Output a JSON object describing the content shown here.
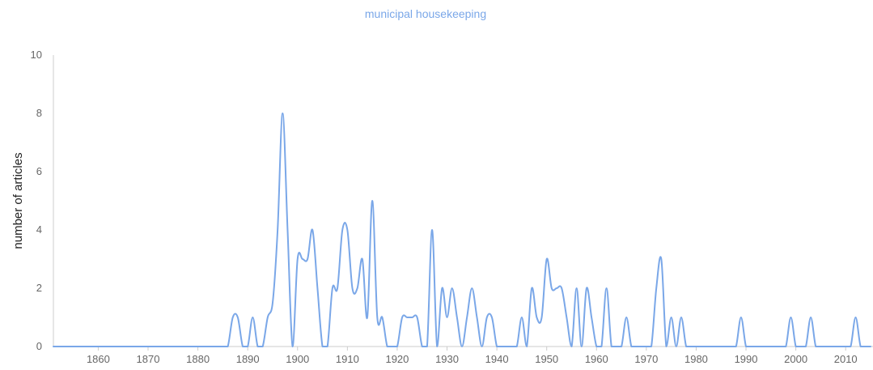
{
  "chart_data": {
    "type": "line",
    "title": "municipal housekeeping",
    "xlabel": "",
    "ylabel": "number of articles",
    "xlim": [
      1851,
      2015
    ],
    "ylim": [
      0,
      10
    ],
    "yticks": [
      0,
      2,
      4,
      6,
      8,
      10
    ],
    "xticks": [
      1860,
      1870,
      1880,
      1890,
      1900,
      1910,
      1920,
      1930,
      1940,
      1950,
      1960,
      1970,
      1980,
      1990,
      2000,
      2010
    ],
    "grid": false,
    "legend": "none",
    "series": [
      {
        "color": "#7aa7e8",
        "x": [
          1851,
          1852,
          1853,
          1854,
          1855,
          1856,
          1857,
          1858,
          1859,
          1860,
          1861,
          1862,
          1863,
          1864,
          1865,
          1866,
          1867,
          1868,
          1869,
          1870,
          1871,
          1872,
          1873,
          1874,
          1875,
          1876,
          1877,
          1878,
          1879,
          1880,
          1881,
          1882,
          1883,
          1884,
          1885,
          1886,
          1887,
          1888,
          1889,
          1890,
          1891,
          1892,
          1893,
          1894,
          1895,
          1896,
          1897,
          1898,
          1899,
          1900,
          1901,
          1902,
          1903,
          1904,
          1905,
          1906,
          1907,
          1908,
          1909,
          1910,
          1911,
          1912,
          1913,
          1914,
          1915,
          1916,
          1917,
          1918,
          1919,
          1920,
          1921,
          1922,
          1923,
          1924,
          1925,
          1926,
          1927,
          1928,
          1929,
          1930,
          1931,
          1932,
          1933,
          1934,
          1935,
          1936,
          1937,
          1938,
          1939,
          1940,
          1941,
          1942,
          1943,
          1944,
          1945,
          1946,
          1947,
          1948,
          1949,
          1950,
          1951,
          1952,
          1953,
          1954,
          1955,
          1956,
          1957,
          1958,
          1959,
          1960,
          1961,
          1962,
          1963,
          1964,
          1965,
          1966,
          1967,
          1968,
          1969,
          1970,
          1971,
          1972,
          1973,
          1974,
          1975,
          1976,
          1977,
          1978,
          1979,
          1980,
          1981,
          1982,
          1983,
          1984,
          1985,
          1986,
          1987,
          1988,
          1989,
          1990,
          1991,
          1992,
          1993,
          1994,
          1995,
          1996,
          1997,
          1998,
          1999,
          2000,
          2001,
          2002,
          2003,
          2004,
          2005,
          2006,
          2007,
          2008,
          2009,
          2010,
          2011,
          2012,
          2013,
          2014,
          2015
        ],
        "y": [
          0,
          0,
          0,
          0,
          0,
          0,
          0,
          0,
          0,
          0,
          0,
          0,
          0,
          0,
          0,
          0,
          0,
          0,
          0,
          0,
          0,
          0,
          0,
          0,
          0,
          0,
          0,
          0,
          0,
          0,
          0,
          0,
          0,
          0,
          0,
          0,
          1,
          1,
          0,
          0,
          1,
          0,
          0,
          1,
          1.5,
          4,
          8,
          4,
          0,
          3,
          3,
          3,
          4,
          2,
          0,
          0,
          2,
          2,
          4,
          4,
          2,
          2,
          3,
          1,
          5,
          1,
          1,
          0,
          0,
          0,
          1,
          1,
          1,
          1,
          0,
          0,
          4,
          0,
          2,
          1,
          2,
          1,
          0,
          1,
          2,
          1,
          0,
          1,
          1,
          0,
          0,
          0,
          0,
          0,
          1,
          0,
          2,
          1,
          1,
          3,
          2,
          2,
          2,
          1,
          0,
          2,
          0,
          2,
          1,
          0,
          0,
          2,
          0,
          0,
          0,
          1,
          0,
          0,
          0,
          0,
          0,
          2,
          3,
          0,
          1,
          0,
          1,
          0,
          0,
          0,
          0,
          0,
          0,
          0,
          0,
          0,
          0,
          0,
          1,
          0,
          0,
          0,
          0,
          0,
          0,
          0,
          0,
          0,
          1,
          0,
          0,
          0,
          1,
          0,
          0,
          0,
          0,
          0,
          0,
          0,
          0,
          1,
          0,
          0,
          0
        ]
      }
    ]
  }
}
